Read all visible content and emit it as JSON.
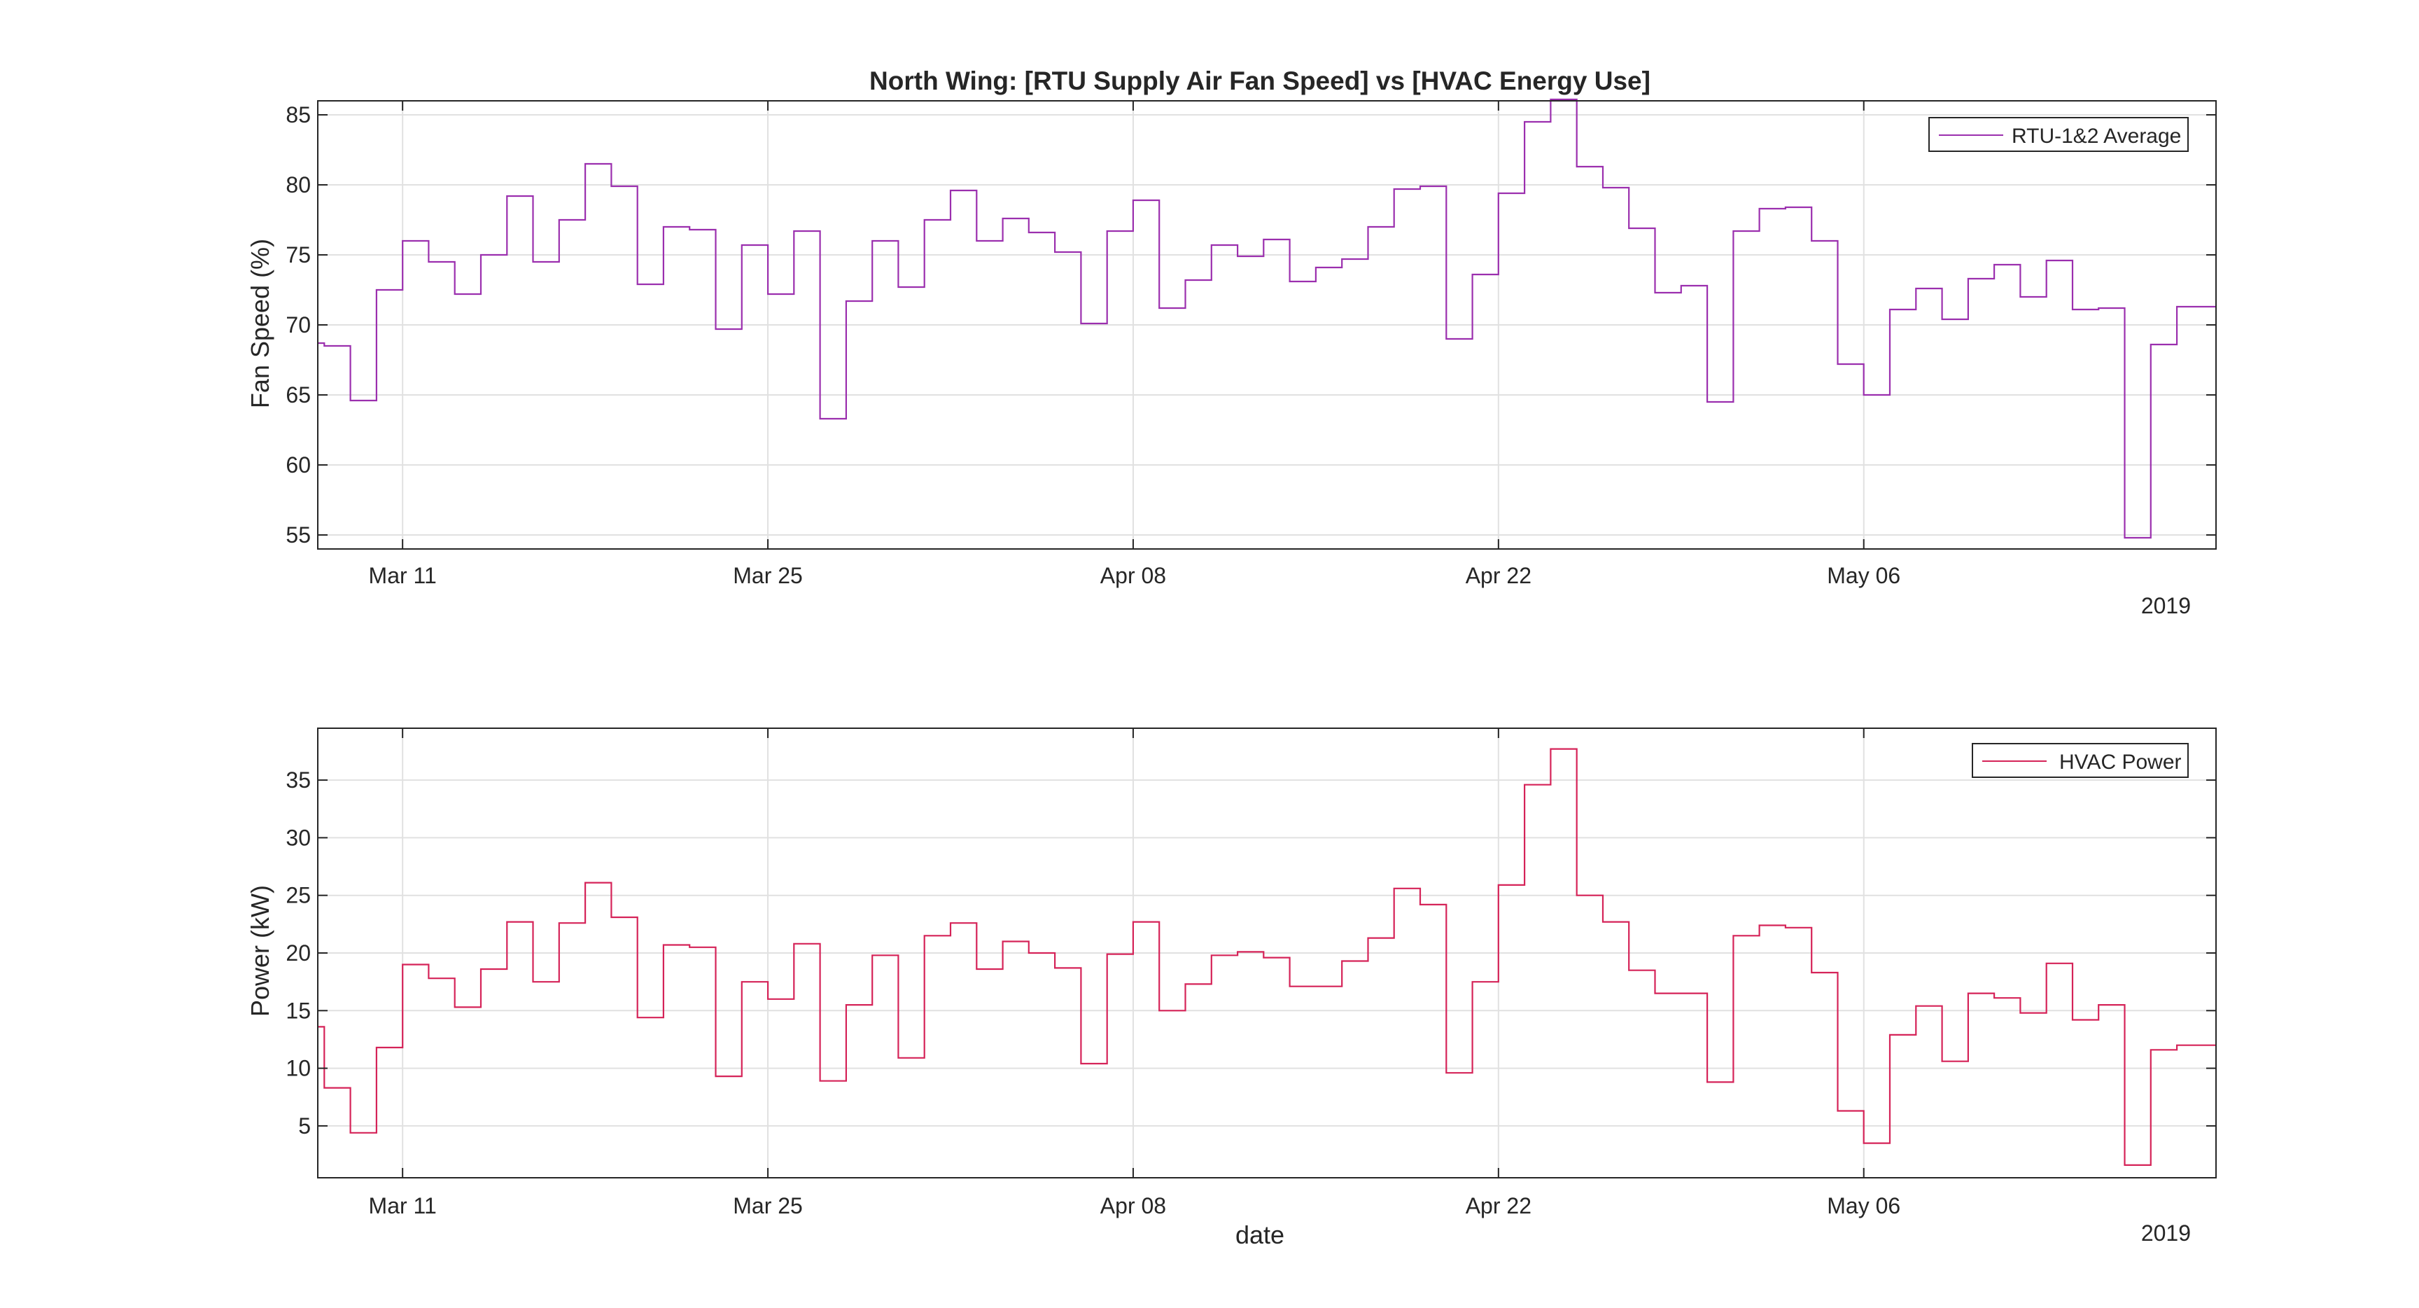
{
  "chart_data": [
    {
      "type": "line",
      "step": true,
      "title": "North Wing: [RTU Supply Air Fan Speed] vs [HVAC Energy Use]",
      "xlabel": "",
      "ylabel": "Fan Speed (%)",
      "x_tick_labels": [
        "Mar 11",
        "Mar 25",
        "Apr 08",
        "Apr 22",
        "May 06"
      ],
      "x_tick_dates": [
        "2019-03-11",
        "2019-03-25",
        "2019-04-08",
        "2019-04-22",
        "2019-05-06"
      ],
      "x_year_label": "2019",
      "xlim": [
        "2019-03-07 18:00",
        "2019-05-19 12:00"
      ],
      "ylim": [
        54,
        86
      ],
      "y_ticks": [
        55,
        60,
        65,
        70,
        75,
        80,
        85
      ],
      "grid": true,
      "legend_position": "top-right",
      "color": "#9B2FAE",
      "series": [
        {
          "name": "RTU-1&2 Average",
          "x": [
            "2019-03-07",
            "2019-03-08",
            "2019-03-09",
            "2019-03-10",
            "2019-03-11",
            "2019-03-12",
            "2019-03-13",
            "2019-03-14",
            "2019-03-15",
            "2019-03-16",
            "2019-03-17",
            "2019-03-18",
            "2019-03-19",
            "2019-03-20",
            "2019-03-21",
            "2019-03-22",
            "2019-03-23",
            "2019-03-24",
            "2019-03-25",
            "2019-03-26",
            "2019-03-27",
            "2019-03-28",
            "2019-03-29",
            "2019-03-30",
            "2019-03-31",
            "2019-04-01",
            "2019-04-02",
            "2019-04-03",
            "2019-04-04",
            "2019-04-05",
            "2019-04-06",
            "2019-04-07",
            "2019-04-08",
            "2019-04-09",
            "2019-04-10",
            "2019-04-11",
            "2019-04-12",
            "2019-04-13",
            "2019-04-14",
            "2019-04-15",
            "2019-04-16",
            "2019-04-17",
            "2019-04-18",
            "2019-04-19",
            "2019-04-20",
            "2019-04-21",
            "2019-04-22",
            "2019-04-23",
            "2019-04-24",
            "2019-04-25",
            "2019-04-26",
            "2019-04-27",
            "2019-04-28",
            "2019-04-29",
            "2019-04-30",
            "2019-05-01",
            "2019-05-02",
            "2019-05-03",
            "2019-05-04",
            "2019-05-05",
            "2019-05-06",
            "2019-05-07",
            "2019-05-08",
            "2019-05-09",
            "2019-05-10",
            "2019-05-11",
            "2019-05-12",
            "2019-05-13",
            "2019-05-14",
            "2019-05-15",
            "2019-05-16",
            "2019-05-17",
            "2019-05-18",
            "2019-05-19"
          ],
          "values": [
            68.7,
            68.5,
            64.6,
            72.5,
            76.0,
            74.5,
            72.2,
            75.0,
            79.2,
            74.5,
            77.5,
            81.5,
            79.9,
            72.9,
            77.0,
            76.8,
            69.7,
            75.7,
            72.2,
            76.7,
            63.3,
            71.7,
            76.0,
            72.7,
            77.5,
            79.6,
            76.0,
            77.6,
            76.6,
            75.2,
            70.1,
            76.7,
            78.9,
            71.2,
            73.2,
            75.7,
            74.9,
            76.1,
            73.1,
            74.1,
            74.7,
            77.0,
            79.7,
            79.9,
            69.0,
            73.6,
            79.4,
            84.5,
            86.1,
            81.3,
            79.8,
            76.9,
            72.3,
            72.8,
            64.5,
            76.7,
            78.3,
            78.4,
            76.0,
            67.2,
            65.0,
            71.1,
            72.6,
            70.4,
            73.3,
            74.3,
            72.0,
            74.6,
            71.1,
            71.2,
            54.8,
            68.6,
            71.3,
            71.3
          ]
        }
      ]
    },
    {
      "type": "line",
      "step": true,
      "title": "",
      "xlabel": "date",
      "ylabel": "Power (kW)",
      "x_tick_labels": [
        "Mar 11",
        "Mar 25",
        "Apr 08",
        "Apr 22",
        "May 06"
      ],
      "x_tick_dates": [
        "2019-03-11",
        "2019-03-25",
        "2019-04-08",
        "2019-04-22",
        "2019-05-06"
      ],
      "x_year_label": "2019",
      "xlim": [
        "2019-03-07 18:00",
        "2019-05-19 12:00"
      ],
      "ylim": [
        0.5,
        39.5
      ],
      "y_ticks": [
        5,
        10,
        15,
        20,
        25,
        30,
        35
      ],
      "grid": true,
      "legend_position": "top-right",
      "color": "#D52358",
      "series": [
        {
          "name": "HVAC Power",
          "x": [
            "2019-03-07",
            "2019-03-08",
            "2019-03-09",
            "2019-03-10",
            "2019-03-11",
            "2019-03-12",
            "2019-03-13",
            "2019-03-14",
            "2019-03-15",
            "2019-03-16",
            "2019-03-17",
            "2019-03-18",
            "2019-03-19",
            "2019-03-20",
            "2019-03-21",
            "2019-03-22",
            "2019-03-23",
            "2019-03-24",
            "2019-03-25",
            "2019-03-26",
            "2019-03-27",
            "2019-03-28",
            "2019-03-29",
            "2019-03-30",
            "2019-03-31",
            "2019-04-01",
            "2019-04-02",
            "2019-04-03",
            "2019-04-04",
            "2019-04-05",
            "2019-04-06",
            "2019-04-07",
            "2019-04-08",
            "2019-04-09",
            "2019-04-10",
            "2019-04-11",
            "2019-04-12",
            "2019-04-13",
            "2019-04-14",
            "2019-04-15",
            "2019-04-16",
            "2019-04-17",
            "2019-04-18",
            "2019-04-19",
            "2019-04-20",
            "2019-04-21",
            "2019-04-22",
            "2019-04-23",
            "2019-04-24",
            "2019-04-25",
            "2019-04-26",
            "2019-04-27",
            "2019-04-28",
            "2019-04-29",
            "2019-04-30",
            "2019-05-01",
            "2019-05-02",
            "2019-05-03",
            "2019-05-04",
            "2019-05-05",
            "2019-05-06",
            "2019-05-07",
            "2019-05-08",
            "2019-05-09",
            "2019-05-10",
            "2019-05-11",
            "2019-05-12",
            "2019-05-13",
            "2019-05-14",
            "2019-05-15",
            "2019-05-16",
            "2019-05-17",
            "2019-05-18",
            "2019-05-19"
          ],
          "values": [
            13.6,
            8.3,
            4.4,
            11.8,
            19.0,
            17.8,
            15.3,
            18.6,
            22.7,
            17.5,
            22.6,
            26.1,
            23.1,
            14.4,
            20.7,
            20.5,
            9.3,
            17.5,
            16.0,
            20.8,
            8.9,
            15.5,
            19.8,
            10.9,
            21.5,
            22.6,
            18.6,
            21.0,
            20.0,
            18.7,
            10.4,
            19.9,
            22.7,
            15.0,
            17.3,
            19.8,
            20.1,
            19.6,
            17.1,
            17.1,
            19.3,
            21.3,
            25.6,
            24.2,
            9.6,
            17.5,
            25.9,
            34.6,
            37.7,
            25.0,
            22.7,
            18.5,
            16.5,
            16.5,
            8.8,
            21.5,
            22.4,
            22.2,
            18.3,
            6.3,
            3.5,
            12.9,
            15.4,
            10.6,
            16.5,
            16.1,
            14.8,
            19.1,
            14.2,
            15.5,
            1.6,
            11.6,
            12.0,
            12.0
          ]
        }
      ]
    }
  ]
}
